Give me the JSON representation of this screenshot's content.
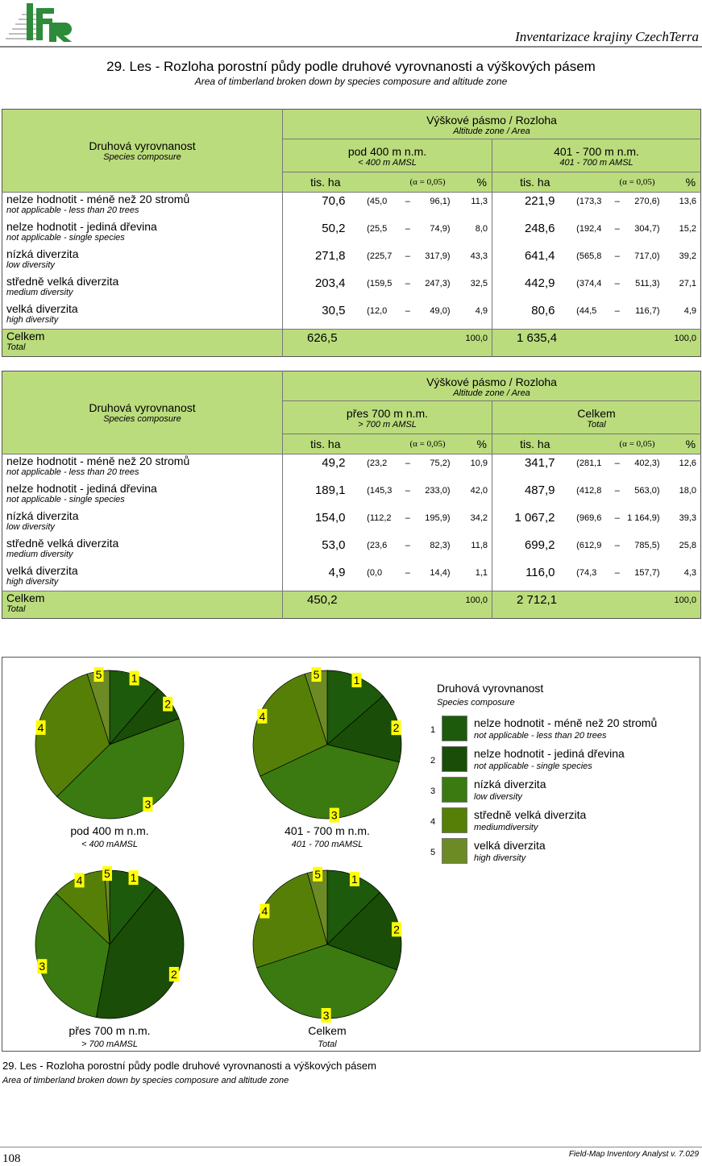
{
  "header": {
    "logo_text": "IFER",
    "right_title": "Inventarizace krajiny CzechTerra"
  },
  "title": "29. Les - Rozloha porostní půdy podle druhové vyrovnanosti a výškových pásem",
  "subtitle": "Area of timberland broken down by species composure and altitude zone",
  "table_common": {
    "row_header_cz": "Druhová vyrovnanost",
    "row_header_en": "Species composure",
    "group_cz": "Výškové pásmo / Rozloha",
    "group_en": "Altitude zone / Area",
    "unit": "tis. ha",
    "alpha": "(α = 0,05)",
    "pct": "%"
  },
  "rows": [
    {
      "cz": "nelze hodnotit - méně než 20 stromů",
      "en": "not applicable - less than 20 trees"
    },
    {
      "cz": "nelze hodnotit - jediná dřevina",
      "en": "not applicable - single species"
    },
    {
      "cz": "nízká diverzita",
      "en": "low diversity"
    },
    {
      "cz": "středně velká diverzita",
      "en": "medium diversity"
    },
    {
      "cz": "velká diverzita",
      "en": "high diversity"
    },
    {
      "cz": "Celkem",
      "en": "Total"
    }
  ],
  "tables": [
    {
      "zones": [
        {
          "cz": "pod 400 m n.m.",
          "en": "< 400 m AMSL",
          "data": [
            [
              "70,6",
              "45,0",
              "96,1",
              "11,3"
            ],
            [
              "50,2",
              "25,5",
              "74,9",
              "8,0"
            ],
            [
              "271,8",
              "225,7",
              "317,9",
              "43,3"
            ],
            [
              "203,4",
              "159,5",
              "247,3",
              "32,5"
            ],
            [
              "30,5",
              "12,0",
              "49,0",
              "4,9"
            ]
          ],
          "total": [
            "626,5",
            "100,0"
          ]
        },
        {
          "cz": "401 - 700 m n.m.",
          "en": "401 - 700 m AMSL",
          "data": [
            [
              "221,9",
              "173,3",
              "270,6",
              "13,6"
            ],
            [
              "248,6",
              "192,4",
              "304,7",
              "15,2"
            ],
            [
              "641,4",
              "565,8",
              "717,0",
              "39,2"
            ],
            [
              "442,9",
              "374,4",
              "511,3",
              "27,1"
            ],
            [
              "80,6",
              "44,5",
              "116,7",
              "4,9"
            ]
          ],
          "total": [
            "1 635,4",
            "100,0"
          ]
        }
      ]
    },
    {
      "zones": [
        {
          "cz": "přes 700 m n.m.",
          "en": "> 700 m AMSL",
          "data": [
            [
              "49,2",
              "23,2",
              "75,2",
              "10,9"
            ],
            [
              "189,1",
              "145,3",
              "233,0",
              "42,0"
            ],
            [
              "154,0",
              "112,2",
              "195,9",
              "34,2"
            ],
            [
              "53,0",
              "23,6",
              "82,3",
              "11,8"
            ],
            [
              "4,9",
              "0,0",
              "14,4",
              "1,1"
            ]
          ],
          "total": [
            "450,2",
            "100,0"
          ]
        },
        {
          "cz": "Celkem",
          "en": "Total",
          "data": [
            [
              "341,7",
              "281,1",
              "402,3",
              "12,6"
            ],
            [
              "487,9",
              "412,8",
              "563,0",
              "18,0"
            ],
            [
              "1 067,2",
              "969,6",
              "1 164,9",
              "39,3"
            ],
            [
              "699,2",
              "612,9",
              "785,5",
              "25,8"
            ],
            [
              "116,0",
              "74,3",
              "157,7",
              "4,3"
            ]
          ],
          "total": [
            "2 712,1",
            "100,0"
          ]
        }
      ]
    }
  ],
  "chart_data": [
    {
      "type": "pie",
      "title": "pod 400 m n.m.",
      "subtitle": "< 400 mAMSL",
      "labels": [
        "1",
        "2",
        "3",
        "4",
        "5"
      ],
      "values": [
        11.3,
        8.0,
        43.3,
        32.5,
        4.9
      ]
    },
    {
      "type": "pie",
      "title": "401 - 700 m n.m.",
      "subtitle": "401 - 700 mAMSL",
      "labels": [
        "1",
        "2",
        "3",
        "4",
        "5"
      ],
      "values": [
        13.6,
        15.2,
        39.2,
        27.1,
        4.9
      ]
    },
    {
      "type": "pie",
      "title": "přes 700 m n.m.",
      "subtitle": "> 700 mAMSL",
      "labels": [
        "1",
        "2",
        "3",
        "4",
        "5"
      ],
      "values": [
        10.9,
        42.0,
        34.2,
        11.8,
        1.1
      ]
    },
    {
      "type": "pie",
      "title": "Celkem",
      "subtitle": "Total",
      "labels": [
        "1",
        "2",
        "3",
        "4",
        "5"
      ],
      "values": [
        12.6,
        18.0,
        39.3,
        25.8,
        4.3
      ]
    }
  ],
  "legend": {
    "title": "Druhová vyrovnanost",
    "subtitle": "Species composure",
    "items": [
      {
        "num": "1",
        "cz": "nelze hodnotit - méně než 20 stromů",
        "en": "not applicable - less than 20 trees",
        "color": "#1d5a0b"
      },
      {
        "num": "2",
        "cz": "nelze hodnotit - jediná dřevina",
        "en": "not applicable - single species",
        "color": "#1a4d07"
      },
      {
        "num": "3",
        "cz": "nízká diverzita",
        "en": "low diversity",
        "color": "#3a7a10"
      },
      {
        "num": "4",
        "cz": "středně velká diverzita",
        "en": "mediumdiversity",
        "color": "#557f07"
      },
      {
        "num": "5",
        "cz": "velká diverzita",
        "en": "high diversity",
        "color": "#6d8b24"
      }
    ]
  },
  "colors": {
    "header_green": "#bbdc7d",
    "label_yellow": "#ffff00"
  },
  "caption_cz": "29. Les - Rozloha porostní půdy podle druhové vyrovnanosti a výškových pásem",
  "caption_en": "Area of timberland broken down by species composure and altitude zone",
  "footer": {
    "page": "108",
    "software": "Field-Map Inventory Analyst v. 7.029"
  }
}
